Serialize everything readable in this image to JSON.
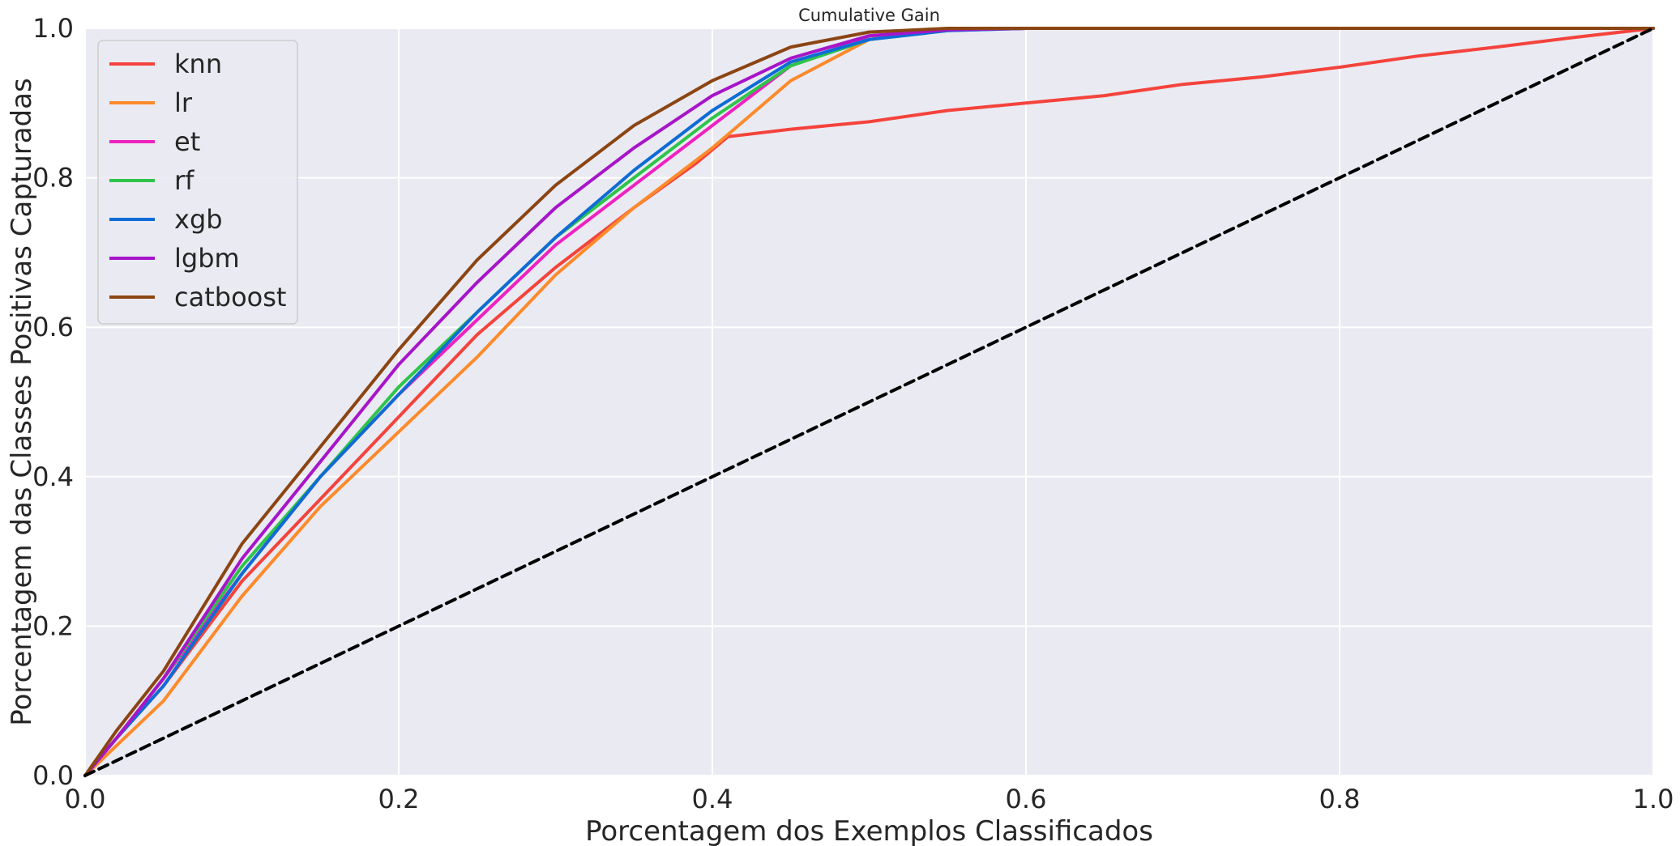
{
  "chart_data": {
    "type": "line",
    "title": "Cumulative Gain",
    "xlabel": "Porcentagem dos Exemplos Classificados",
    "ylabel": "Porcentagem das Classes Positivas Capturadas",
    "xlim": [
      0.0,
      1.0
    ],
    "ylim": [
      0.0,
      1.0
    ],
    "x_ticks": [
      "0.0",
      "0.2",
      "0.4",
      "0.6",
      "0.8",
      "1.0"
    ],
    "y_ticks": [
      "0.0",
      "0.2",
      "0.4",
      "0.6",
      "0.8",
      "1.0"
    ],
    "grid": true,
    "legend_position": "upper-left",
    "background_color": "#eaeaf2",
    "series": [
      {
        "name": "knn",
        "color": "#f4433c",
        "points": [
          [
            0,
            0
          ],
          [
            0.02,
            0.05
          ],
          [
            0.05,
            0.12
          ],
          [
            0.1,
            0.26
          ],
          [
            0.15,
            0.37
          ],
          [
            0.2,
            0.48
          ],
          [
            0.25,
            0.59
          ],
          [
            0.3,
            0.68
          ],
          [
            0.35,
            0.76
          ],
          [
            0.39,
            0.82
          ],
          [
            0.41,
            0.855
          ],
          [
            0.45,
            0.865
          ],
          [
            0.5,
            0.875
          ],
          [
            0.55,
            0.89
          ],
          [
            0.6,
            0.9
          ],
          [
            0.65,
            0.91
          ],
          [
            0.7,
            0.925
          ],
          [
            0.75,
            0.935
          ],
          [
            0.8,
            0.948
          ],
          [
            0.85,
            0.963
          ],
          [
            0.9,
            0.975
          ],
          [
            0.95,
            0.988
          ],
          [
            1.0,
            1.0
          ]
        ]
      },
      {
        "name": "lr",
        "color": "#fd8a2b",
        "points": [
          [
            0,
            0
          ],
          [
            0.02,
            0.04
          ],
          [
            0.05,
            0.1
          ],
          [
            0.1,
            0.24
          ],
          [
            0.15,
            0.36
          ],
          [
            0.2,
            0.46
          ],
          [
            0.25,
            0.56
          ],
          [
            0.3,
            0.67
          ],
          [
            0.35,
            0.76
          ],
          [
            0.4,
            0.84
          ],
          [
            0.45,
            0.93
          ],
          [
            0.5,
            0.985
          ],
          [
            0.55,
            0.998
          ],
          [
            0.6,
            1.0
          ],
          [
            1.0,
            1.0
          ]
        ]
      },
      {
        "name": "et",
        "color": "#ee22c0",
        "points": [
          [
            0,
            0
          ],
          [
            0.02,
            0.05
          ],
          [
            0.05,
            0.13
          ],
          [
            0.1,
            0.27
          ],
          [
            0.15,
            0.4
          ],
          [
            0.2,
            0.51
          ],
          [
            0.25,
            0.61
          ],
          [
            0.3,
            0.71
          ],
          [
            0.35,
            0.79
          ],
          [
            0.4,
            0.87
          ],
          [
            0.45,
            0.95
          ],
          [
            0.5,
            0.99
          ],
          [
            0.55,
            0.998
          ],
          [
            0.6,
            1.0
          ],
          [
            1.0,
            1.0
          ]
        ]
      },
      {
        "name": "rf",
        "color": "#2ec44a",
        "points": [
          [
            0,
            0
          ],
          [
            0.02,
            0.05
          ],
          [
            0.05,
            0.13
          ],
          [
            0.1,
            0.28
          ],
          [
            0.15,
            0.4
          ],
          [
            0.2,
            0.52
          ],
          [
            0.25,
            0.62
          ],
          [
            0.3,
            0.72
          ],
          [
            0.35,
            0.8
          ],
          [
            0.4,
            0.88
          ],
          [
            0.45,
            0.95
          ],
          [
            0.5,
            0.985
          ],
          [
            0.55,
            0.997
          ],
          [
            0.6,
            1.0
          ],
          [
            1.0,
            1.0
          ]
        ]
      },
      {
        "name": "xgb",
        "color": "#0f6bd6",
        "points": [
          [
            0,
            0
          ],
          [
            0.02,
            0.05
          ],
          [
            0.05,
            0.12
          ],
          [
            0.1,
            0.27
          ],
          [
            0.15,
            0.4
          ],
          [
            0.2,
            0.51
          ],
          [
            0.25,
            0.62
          ],
          [
            0.3,
            0.72
          ],
          [
            0.35,
            0.81
          ],
          [
            0.4,
            0.89
          ],
          [
            0.45,
            0.955
          ],
          [
            0.5,
            0.985
          ],
          [
            0.55,
            0.997
          ],
          [
            0.6,
            1.0
          ],
          [
            1.0,
            1.0
          ]
        ]
      },
      {
        "name": "lgbm",
        "color": "#a715c9",
        "points": [
          [
            0,
            0
          ],
          [
            0.02,
            0.05
          ],
          [
            0.05,
            0.13
          ],
          [
            0.1,
            0.29
          ],
          [
            0.15,
            0.42
          ],
          [
            0.2,
            0.55
          ],
          [
            0.25,
            0.66
          ],
          [
            0.3,
            0.76
          ],
          [
            0.35,
            0.84
          ],
          [
            0.4,
            0.91
          ],
          [
            0.45,
            0.96
          ],
          [
            0.5,
            0.99
          ],
          [
            0.55,
            0.998
          ],
          [
            0.6,
            1.0
          ],
          [
            1.0,
            1.0
          ]
        ]
      },
      {
        "name": "catboost",
        "color": "#8b4513",
        "points": [
          [
            0,
            0
          ],
          [
            0.02,
            0.06
          ],
          [
            0.05,
            0.14
          ],
          [
            0.1,
            0.31
          ],
          [
            0.15,
            0.44
          ],
          [
            0.2,
            0.57
          ],
          [
            0.25,
            0.69
          ],
          [
            0.3,
            0.79
          ],
          [
            0.35,
            0.87
          ],
          [
            0.4,
            0.93
          ],
          [
            0.45,
            0.975
          ],
          [
            0.5,
            0.995
          ],
          [
            0.55,
            1.0
          ],
          [
            1.0,
            1.0
          ]
        ]
      },
      {
        "name": "",
        "color": "#000000",
        "dashed": true,
        "points": [
          [
            0,
            0
          ],
          [
            1,
            1
          ]
        ]
      }
    ]
  }
}
